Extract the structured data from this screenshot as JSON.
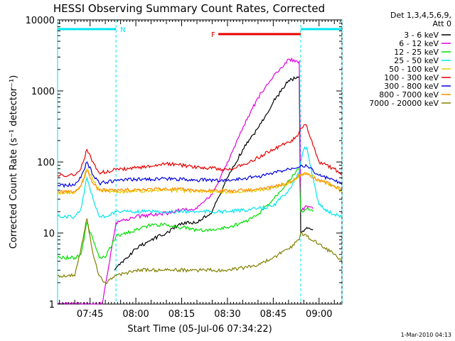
{
  "chart_data": {
    "type": "line",
    "title": "HESSI Observing Summary Count Rates, Corrected",
    "xlabel": "Start Time (05-Jul-06 07:34:22)",
    "ylabel": "Corrected Count Rate (s⁻¹ detector⁻¹)",
    "yscale": "log",
    "ylim": [
      1,
      10000
    ],
    "xlim": [
      "07:34:22",
      "09:07:30"
    ],
    "x_tick_labels": [
      "07:45",
      "08:00",
      "08:15",
      "08:30",
      "08:45",
      "09:00"
    ],
    "y_tick_labels": [
      "1",
      "10",
      "100",
      "1000",
      "10000"
    ],
    "legend_header": [
      "Det 1,3,4,5,6,9,",
      "Att 0"
    ],
    "legend_placement": "right",
    "timestamp": "1-Mar-2010 04:13",
    "flags": [
      {
        "label": "N",
        "color": "#00e5ee",
        "spans": [
          [
            "07:34:22",
            "07:53:30"
          ],
          [
            "08:54:00",
            "09:07:30"
          ]
        ]
      },
      {
        "label": "F",
        "color": "#e80000",
        "spans": [
          [
            "08:27:00",
            "08:54:00"
          ]
        ]
      }
    ],
    "series": [
      {
        "name": "3 - 6 keV",
        "color": "#000000",
        "x": [
          "07:53:00",
          "08:00",
          "08:05",
          "08:10",
          "08:15",
          "08:20",
          "08:25",
          "08:30",
          "08:35",
          "08:40",
          "08:45",
          "08:50",
          "08:53:30",
          "08:54:00",
          "08:56",
          "08:58"
        ],
        "y": [
          3,
          6,
          8,
          10,
          14,
          14,
          20,
          60,
          150,
          300,
          700,
          1400,
          1600,
          10,
          12,
          11
        ]
      },
      {
        "name": "6 - 12 keV",
        "color": "#e000e0",
        "x": [
          "07:34:22",
          "07:48",
          "07:49",
          "07:53:30",
          "08:00",
          "08:10",
          "08:15",
          "08:20",
          "08:25",
          "08:30",
          "08:35",
          "08:40",
          "08:45",
          "08:50",
          "08:53:30",
          "08:54:00",
          "08:56",
          "08:58"
        ],
        "y": [
          1,
          1,
          1,
          14,
          17,
          19,
          21,
          22,
          35,
          100,
          300,
          800,
          1600,
          2800,
          2600,
          20,
          24,
          22
        ]
      },
      {
        "name": "12 - 25 keV",
        "color": "#00e000",
        "x": [
          "07:34:22",
          "07:40",
          "07:42",
          "07:44",
          "07:46",
          "07:48",
          "07:50",
          "07:53:30",
          "08:00",
          "08:05",
          "08:10",
          "08:15",
          "08:20",
          "08:25",
          "08:30",
          "08:35",
          "08:40",
          "08:45",
          "08:50",
          "08:53:30",
          "08:54:00",
          "08:56",
          "08:58"
        ],
        "y": [
          4.5,
          4.5,
          5,
          14,
          8,
          4.5,
          4.5,
          9,
          11,
          13,
          13,
          12,
          11,
          11,
          12,
          14,
          18,
          30,
          55,
          80,
          20,
          22,
          20
        ]
      },
      {
        "name": "25 - 50 keV",
        "color": "#00e5ee",
        "x": [
          "07:34:22",
          "07:40",
          "07:42",
          "07:44",
          "07:46",
          "07:48",
          "07:50",
          "07:53:30",
          "08:00",
          "08:10",
          "08:20",
          "08:30",
          "08:40",
          "08:45",
          "08:50",
          "08:53:30",
          "08:54:00",
          "08:55",
          "08:56",
          "08:58",
          "09:00",
          "09:03",
          "09:07:30"
        ],
        "y": [
          17,
          17,
          22,
          60,
          30,
          17,
          17,
          20,
          20,
          20,
          20,
          20,
          22,
          24,
          40,
          70,
          100,
          150,
          160,
          60,
          25,
          20,
          17
        ]
      },
      {
        "name": "50 - 100 keV",
        "color": "#e0d000",
        "x": [
          "07:34:22",
          "07:40",
          "07:42",
          "07:44",
          "07:46",
          "07:48",
          "07:53:30",
          "08:00",
          "08:10",
          "08:20",
          "08:30",
          "08:40",
          "08:45",
          "08:50",
          "08:54",
          "08:56",
          "09:00",
          "09:05",
          "09:07:30"
        ],
        "y": [
          37,
          37,
          45,
          80,
          55,
          40,
          38,
          39,
          40,
          39,
          38,
          40,
          43,
          50,
          65,
          70,
          55,
          45,
          38
        ]
      },
      {
        "name": "100 - 300 keV",
        "color": "#e80000",
        "x": [
          "07:34:22",
          "07:40",
          "07:42",
          "07:44",
          "07:46",
          "07:48",
          "07:53:30",
          "08:00",
          "08:10",
          "08:20",
          "08:30",
          "08:35",
          "08:40",
          "08:45",
          "08:50",
          "08:53",
          "08:54",
          "08:55",
          "08:56",
          "08:58",
          "09:00",
          "09:05",
          "09:07:30"
        ],
        "y": [
          65,
          65,
          80,
          150,
          100,
          70,
          78,
          82,
          95,
          85,
          78,
          90,
          115,
          150,
          190,
          230,
          300,
          330,
          320,
          170,
          100,
          80,
          65
        ]
      },
      {
        "name": "300 - 800 keV",
        "color": "#0000e0",
        "x": [
          "07:34:22",
          "07:40",
          "07:42",
          "07:44",
          "07:46",
          "07:48",
          "07:53:30",
          "08:00",
          "08:10",
          "08:20",
          "08:30",
          "08:40",
          "08:45",
          "08:50",
          "08:54",
          "08:56",
          "09:00",
          "09:05",
          "09:07:30"
        ],
        "y": [
          47,
          47,
          60,
          100,
          65,
          50,
          55,
          57,
          58,
          56,
          55,
          62,
          70,
          80,
          90,
          88,
          65,
          55,
          48
        ]
      },
      {
        "name": "800 - 7000 keV",
        "color": "#ff8c00",
        "x": [
          "07:34:22",
          "07:40",
          "07:42",
          "07:44",
          "07:46",
          "07:48",
          "07:53:30",
          "08:00",
          "08:10",
          "08:20",
          "08:30",
          "08:40",
          "08:45",
          "08:50",
          "08:54",
          "08:56",
          "09:00",
          "09:05",
          "09:07:30"
        ],
        "y": [
          38,
          38,
          46,
          75,
          50,
          40,
          40,
          41,
          42,
          40,
          39,
          41,
          44,
          52,
          65,
          68,
          56,
          46,
          40
        ]
      },
      {
        "name": "7000 - 20000 keV",
        "color": "#808000",
        "x": [
          "07:34:22",
          "07:40",
          "07:42",
          "07:44",
          "07:46",
          "07:48",
          "07:50",
          "07:53:30",
          "08:00",
          "08:10",
          "08:20",
          "08:30",
          "08:40",
          "08:45",
          "08:50",
          "08:53:30",
          "08:54",
          "08:56",
          "09:00",
          "09:05",
          "09:07:30"
        ],
        "y": [
          2.5,
          2.5,
          6,
          16,
          5,
          2.5,
          2,
          2.5,
          3,
          3,
          3,
          3,
          3.5,
          4.5,
          6,
          8,
          10,
          9,
          7,
          5,
          4
        ]
      }
    ]
  }
}
